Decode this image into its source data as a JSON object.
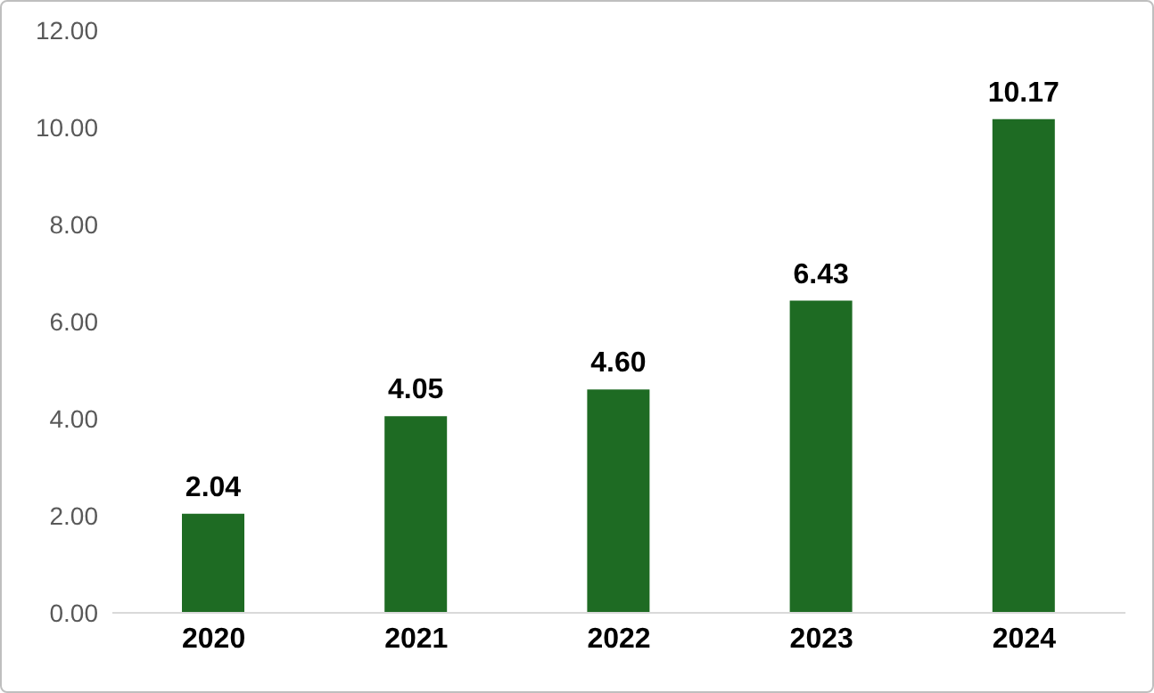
{
  "chart_data": {
    "type": "bar",
    "categories": [
      "2020",
      "2021",
      "2022",
      "2023",
      "2024"
    ],
    "values": [
      2.04,
      4.05,
      4.6,
      6.43,
      10.17
    ],
    "value_labels": [
      "2.04",
      "4.05",
      "4.60",
      "6.43",
      "10.17"
    ],
    "color": "#1e6b23",
    "ylim": [
      0,
      12
    ],
    "yticks": [
      {
        "value": 0,
        "label": "0.00"
      },
      {
        "value": 2,
        "label": "2.00"
      },
      {
        "value": 4,
        "label": "4.00"
      },
      {
        "value": 6,
        "label": "6.00"
      },
      {
        "value": 8,
        "label": "8.00"
      },
      {
        "value": 10,
        "label": "10.00"
      },
      {
        "value": 12,
        "label": "12.00"
      }
    ],
    "grid": false,
    "legend": false
  }
}
